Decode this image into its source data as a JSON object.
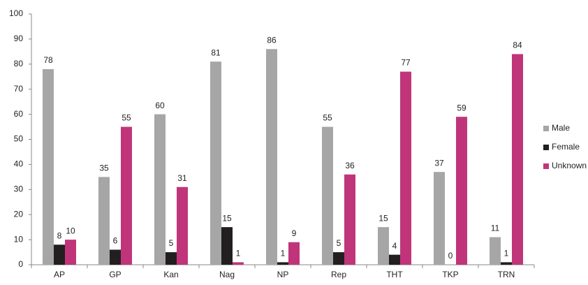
{
  "chart_data": {
    "type": "bar",
    "categories": [
      "AP",
      "GP",
      "Kan",
      "Nag",
      "NP",
      "Rep",
      "THT",
      "TKP",
      "TRN"
    ],
    "series": [
      {
        "name": "Male",
        "color": "#a6a6a6",
        "values": [
          78,
          35,
          60,
          81,
          86,
          55,
          15,
          37,
          11
        ]
      },
      {
        "name": "Female",
        "color": "#231f20",
        "values": [
          8,
          6,
          5,
          15,
          1,
          5,
          4,
          0,
          1
        ]
      },
      {
        "name": "Unknown",
        "color": "#c0357a",
        "values": [
          10,
          55,
          31,
          1,
          9,
          36,
          77,
          59,
          84
        ]
      }
    ],
    "ylim": [
      0,
      100
    ],
    "yticks": [
      0,
      10,
      20,
      30,
      40,
      50,
      60,
      70,
      80,
      90,
      100
    ],
    "grid": false,
    "legend": "right"
  }
}
